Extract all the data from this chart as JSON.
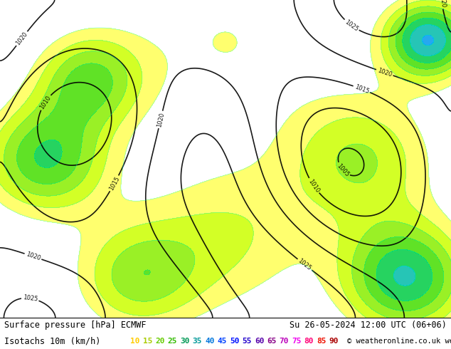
{
  "title_line1": "Surface pressure [hPa] ECMWF",
  "title_line2": "Su 26-05-2024 12:00 UTC (06+06)",
  "legend_label": "Isotachs 10m (km/h)",
  "copyright": "© weatheronline.co.uk",
  "isotach_values": [
    10,
    15,
    20,
    25,
    30,
    35,
    40,
    45,
    50,
    55,
    60,
    65,
    70,
    75,
    80,
    85,
    90
  ],
  "isotach_colors": [
    "#ffff00",
    "#ccff00",
    "#99ff00",
    "#66ff00",
    "#33cc00",
    "#00cc66",
    "#00cccc",
    "#0099ff",
    "#0055ff",
    "#3300ff",
    "#6600cc",
    "#9900cc",
    "#cc00cc",
    "#ff00ff",
    "#ff0099",
    "#ff0000",
    "#cc0000"
  ],
  "bg_color": "#ffffff",
  "map_bg": "#e8f4e8",
  "bottom_bg": "#ffffff",
  "text_color": "#000000",
  "border_color": "#000000",
  "figsize": [
    6.34,
    4.9
  ],
  "dpi": 100
}
